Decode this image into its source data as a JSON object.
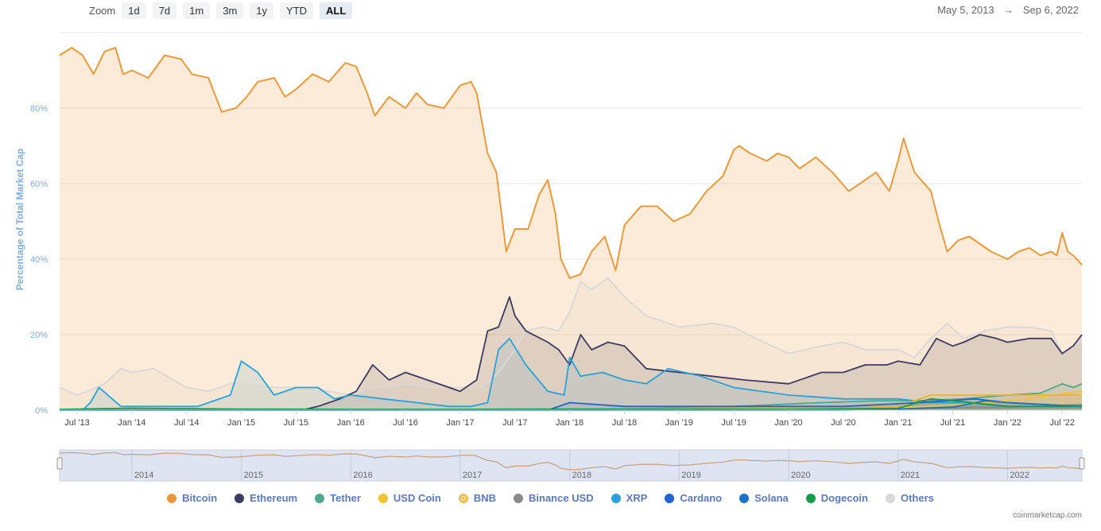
{
  "toolbar": {
    "zoom_label": "Zoom",
    "buttons": [
      "1d",
      "7d",
      "1m",
      "3m",
      "1y",
      "YTD",
      "ALL"
    ],
    "active": "ALL"
  },
  "date_range": {
    "from": "May 5, 2013",
    "arrow": "→",
    "to": "Sep 6, 2022"
  },
  "credit": "coinmarketcap.com",
  "chart_data": {
    "type": "area",
    "ylabel": "Percentage of Total Market Cap",
    "ylim": [
      0,
      100
    ],
    "y_ticks": [
      0,
      20,
      40,
      60,
      80
    ],
    "y_tick_labels": [
      "0%",
      "20%",
      "40%",
      "60%",
      "80%"
    ],
    "xlim": [
      2013.34,
      2022.68
    ],
    "x_ticks": [
      2013.5,
      2014.0,
      2014.5,
      2015.0,
      2015.5,
      2016.0,
      2016.5,
      2017.0,
      2017.5,
      2018.0,
      2018.5,
      2019.0,
      2019.5,
      2020.0,
      2020.5,
      2021.0,
      2021.5,
      2022.0,
      2022.5
    ],
    "x_tick_labels": [
      "Jul '13",
      "Jan '14",
      "Jul '14",
      "Jan '15",
      "Jul '15",
      "Jan '16",
      "Jul '16",
      "Jan '17",
      "Jul '17",
      "Jan '18",
      "Jul '18",
      "Jan '19",
      "Jul '19",
      "Jan '20",
      "Jul '20",
      "Jan '21",
      "Jul '21",
      "Jan '22",
      "Jul '22"
    ],
    "navigator_labels": [
      "2014",
      "2015",
      "2016",
      "2017",
      "2018",
      "2019",
      "2020",
      "2021",
      "2022"
    ],
    "navigator_years": [
      2014,
      2015,
      2016,
      2017,
      2018,
      2019,
      2020,
      2021,
      2022
    ],
    "grid": true,
    "legend_position": "bottom",
    "series": [
      {
        "name": "Others",
        "color": "#d8d8d8",
        "x": [
          2013.34,
          2013.5,
          2013.6,
          2013.75,
          2013.9,
          2014.0,
          2014.2,
          2014.5,
          2014.7,
          2014.9,
          2015.0,
          2015.3,
          2015.5,
          2015.8,
          2016.0,
          2016.2,
          2016.5,
          2016.8,
          2017.0,
          2017.2,
          2017.35,
          2017.5,
          2017.6,
          2017.75,
          2017.9,
          2018.0,
          2018.1,
          2018.2,
          2018.35,
          2018.5,
          2018.7,
          2019.0,
          2019.3,
          2019.5,
          2019.7,
          2020.0,
          2020.3,
          2020.5,
          2020.7,
          2021.0,
          2021.15,
          2021.3,
          2021.45,
          2021.6,
          2021.8,
          2022.0,
          2022.2,
          2022.4,
          2022.5,
          2022.68
        ],
        "y": [
          6,
          4,
          5,
          7,
          11,
          10,
          11,
          6,
          5,
          7,
          7,
          6,
          6,
          5,
          4,
          6,
          7,
          6,
          6,
          6,
          10,
          16,
          21,
          22,
          21,
          26,
          34,
          32,
          35,
          30,
          25,
          22,
          23,
          22,
          19,
          15,
          17,
          18,
          16,
          16,
          14,
          19,
          23,
          19,
          21,
          22,
          22,
          21,
          15,
          18
        ]
      },
      {
        "name": "Ethereum",
        "color": "#3d3a64",
        "x": [
          2013.34,
          2015.55,
          2015.7,
          2015.9,
          2016.05,
          2016.2,
          2016.35,
          2016.5,
          2016.7,
          2016.9,
          2017.0,
          2017.15,
          2017.25,
          2017.35,
          2017.45,
          2017.5,
          2017.6,
          2017.8,
          2017.9,
          2018.0,
          2018.1,
          2018.2,
          2018.35,
          2018.5,
          2018.7,
          2019.0,
          2019.3,
          2019.6,
          2020.0,
          2020.3,
          2020.5,
          2020.7,
          2020.9,
          2021.0,
          2021.2,
          2021.35,
          2021.5,
          2021.6,
          2021.75,
          2021.9,
          2022.0,
          2022.2,
          2022.4,
          2022.5,
          2022.6,
          2022.68
        ],
        "y": [
          0,
          0,
          1,
          3,
          5,
          12,
          8,
          10,
          8,
          6,
          5,
          8,
          21,
          22,
          30,
          25,
          21,
          18,
          16,
          12,
          20,
          16,
          18,
          17,
          11,
          10,
          9,
          8,
          7,
          10,
          10,
          12,
          12,
          13,
          12,
          19,
          17,
          18,
          20,
          19,
          18,
          19,
          19,
          15,
          17,
          20
        ]
      },
      {
        "name": "XRP",
        "color": "#27a2db",
        "x": [
          2013.34,
          2013.55,
          2013.62,
          2013.7,
          2013.9,
          2014.2,
          2014.6,
          2014.9,
          2015.0,
          2015.15,
          2015.3,
          2015.5,
          2015.7,
          2015.85,
          2016.0,
          2016.3,
          2016.6,
          2016.9,
          2017.1,
          2017.25,
          2017.35,
          2017.45,
          2017.6,
          2017.8,
          2017.95,
          2018.0,
          2018.1,
          2018.3,
          2018.5,
          2018.7,
          2018.9,
          2019.2,
          2019.5,
          2020.0,
          2020.5,
          2021.0,
          2021.3,
          2021.6,
          2022.0,
          2022.68
        ],
        "y": [
          0,
          0,
          2,
          6,
          1,
          1,
          1,
          4,
          13,
          10,
          4,
          6,
          6,
          3,
          4,
          3,
          2,
          1,
          1,
          2,
          16,
          19,
          12,
          5,
          4,
          14,
          9,
          10,
          8,
          7,
          11,
          9,
          6,
          4,
          3,
          3,
          2,
          2,
          1,
          1
        ]
      },
      {
        "name": "Tether",
        "color": "#4fa88e",
        "x": [
          2013.34,
          2017.5,
          2018.5,
          2019.5,
          2020.3,
          2020.8,
          2021.2,
          2021.6,
          2022.0,
          2022.3,
          2022.5,
          2022.6,
          2022.68
        ],
        "y": [
          0,
          0,
          0.3,
          1,
          2,
          2.5,
          2.5,
          3,
          4,
          4.5,
          7,
          6,
          7
        ]
      },
      {
        "name": "USD Coin",
        "color": "#f2c333",
        "x": [
          2013.34,
          2018.9,
          2020.5,
          2021.0,
          2021.5,
          2022.0,
          2022.4,
          2022.68
        ],
        "y": [
          0,
          0,
          0.3,
          0.6,
          1.4,
          2.4,
          4,
          5
        ]
      },
      {
        "name": "BNB",
        "color": "#e7b434",
        "x": [
          2013.34,
          2017.8,
          2019.0,
          2020.5,
          2021.0,
          2021.3,
          2021.8,
          2022.2,
          2022.5,
          2022.68
        ],
        "y": [
          0,
          0,
          0.5,
          1,
          1,
          4,
          4,
          4,
          4,
          4
        ]
      },
      {
        "name": "Cardano",
        "color": "#2263d0",
        "x": [
          2013.34,
          2017.8,
          2018.0,
          2018.5,
          2019.5,
          2020.5,
          2021.2,
          2021.7,
          2022.0,
          2022.68
        ],
        "y": [
          0,
          0,
          2,
          1,
          1,
          1,
          2,
          3,
          2,
          1
        ]
      },
      {
        "name": "Binance USD",
        "color": "#8a8a8a",
        "x": [
          2013.34,
          2019.8,
          2020.5,
          2021.0,
          2021.5,
          2022.0,
          2022.68
        ],
        "y": [
          0,
          0,
          0.2,
          0.3,
          0.7,
          0.8,
          1.5
        ]
      },
      {
        "name": "Solana",
        "color": "#1a72c7",
        "x": [
          2013.34,
          2020.5,
          2021.0,
          2021.5,
          2021.8,
          2022.0,
          2022.68
        ],
        "y": [
          0,
          0,
          0.3,
          0.8,
          2.5,
          2,
          1
        ]
      },
      {
        "name": "Dogecoin",
        "color": "#1a9a4a",
        "x": [
          2013.34,
          2014.0,
          2015.0,
          2016.0,
          2017.0,
          2018.0,
          2019.0,
          2020.0,
          2021.0,
          2021.3,
          2021.5,
          2022.0,
          2022.68
        ],
        "y": [
          0.2,
          0.5,
          0.3,
          0.2,
          0.2,
          0.3,
          0.3,
          0.2,
          0.5,
          3,
          2.5,
          1,
          1
        ]
      },
      {
        "name": "Bitcoin",
        "color": "#e99a3b",
        "x": [
          2013.34,
          2013.45,
          2013.55,
          2013.65,
          2013.75,
          2013.85,
          2013.92,
          2014.0,
          2014.15,
          2014.3,
          2014.45,
          2014.55,
          2014.7,
          2014.82,
          2014.95,
          2015.05,
          2015.15,
          2015.3,
          2015.4,
          2015.5,
          2015.65,
          2015.8,
          2015.95,
          2016.05,
          2016.15,
          2016.22,
          2016.35,
          2016.5,
          2016.6,
          2016.7,
          2016.85,
          2017.0,
          2017.1,
          2017.15,
          2017.25,
          2017.33,
          2017.42,
          2017.5,
          2017.62,
          2017.72,
          2017.8,
          2017.87,
          2017.92,
          2018.0,
          2018.1,
          2018.2,
          2018.32,
          2018.42,
          2018.5,
          2018.65,
          2018.8,
          2018.95,
          2019.1,
          2019.25,
          2019.4,
          2019.5,
          2019.55,
          2019.65,
          2019.8,
          2019.9,
          2020.0,
          2020.1,
          2020.25,
          2020.4,
          2020.55,
          2020.7,
          2020.8,
          2020.92,
          2021.0,
          2021.05,
          2021.15,
          2021.3,
          2021.38,
          2021.45,
          2021.55,
          2021.65,
          2021.75,
          2021.85,
          2022.0,
          2022.1,
          2022.2,
          2022.3,
          2022.4,
          2022.45,
          2022.5,
          2022.55,
          2022.6,
          2022.68
        ],
        "y": [
          94,
          96,
          94,
          89,
          95,
          96,
          89,
          90,
          88,
          94,
          93,
          89,
          88,
          79,
          80,
          83,
          87,
          88,
          83,
          85,
          89,
          87,
          92,
          91,
          84,
          78,
          83,
          80,
          84,
          81,
          80,
          86,
          87,
          84,
          68,
          63,
          42,
          48,
          48,
          57,
          61,
          52,
          40,
          35,
          36,
          42,
          46,
          37,
          49,
          54,
          54,
          50,
          52,
          58,
          62,
          69,
          70,
          68,
          66,
          68,
          67,
          64,
          67,
          63,
          58,
          61,
          63,
          58,
          66,
          72,
          63,
          58,
          49,
          42,
          45,
          46,
          44,
          42,
          40,
          42,
          43,
          41,
          42,
          41,
          47,
          42,
          41,
          38.5
        ]
      }
    ]
  },
  "legend": [
    {
      "label": "Bitcoin",
      "color": "#e99a3b"
    },
    {
      "label": "Ethereum",
      "color": "#3d3a64"
    },
    {
      "label": "Tether",
      "color": "#4fa88e"
    },
    {
      "label": "USD Coin",
      "color": "#f2c333"
    },
    {
      "label": "BNB",
      "color": "#e7b434"
    },
    {
      "label": "Binance USD",
      "color": "#8a8a8a"
    },
    {
      "label": "XRP",
      "color": "#27a2db"
    },
    {
      "label": "Cardano",
      "color": "#2263d0"
    },
    {
      "label": "Solana",
      "color": "#1a72c7"
    },
    {
      "label": "Dogecoin",
      "color": "#1a9a4a"
    },
    {
      "label": "Others",
      "color": "#d8d8d8"
    }
  ]
}
